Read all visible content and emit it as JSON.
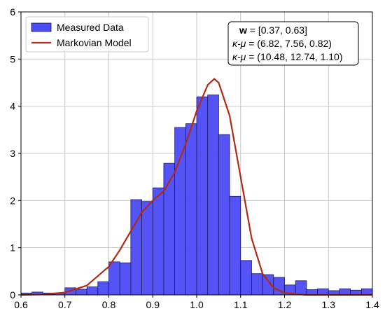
{
  "chart_data": {
    "type": "histogram",
    "bins": [
      0.6,
      0.625,
      0.65,
      0.675,
      0.7,
      0.725,
      0.75,
      0.775,
      0.8,
      0.825,
      0.85,
      0.875,
      0.9,
      0.925,
      0.95,
      0.975,
      1.0,
      1.025,
      1.05,
      1.075,
      1.1,
      1.125,
      1.15,
      1.175,
      1.2,
      1.225,
      1.25,
      1.275,
      1.3,
      1.325,
      1.35,
      1.375,
      1.4
    ],
    "series": [
      {
        "name": "Measured Data",
        "color": "#4b4bf5",
        "edgecolor": "#1a1a5e",
        "values": [
          0.04,
          0.06,
          0.04,
          0.04,
          0.15,
          0.12,
          0.17,
          0.28,
          0.7,
          0.68,
          2.02,
          1.98,
          2.27,
          2.79,
          3.55,
          3.63,
          4.2,
          4.24,
          3.4,
          2.09,
          0.73,
          0.45,
          0.43,
          0.37,
          0.21,
          0.3,
          0.11,
          0.13,
          0.09,
          0.13,
          0.1,
          0.13
        ]
      },
      {
        "name": "Markovian Model",
        "color": "#b22a14",
        "type": "line",
        "x": [
          0.6,
          0.65,
          0.7,
          0.75,
          0.8,
          0.825,
          0.85,
          0.875,
          0.9,
          0.925,
          0.95,
          0.975,
          1.0,
          1.025,
          1.04,
          1.05,
          1.075,
          1.1,
          1.125,
          1.15,
          1.175,
          1.2,
          1.25,
          1.4
        ],
        "values": [
          0,
          0.01,
          0.05,
          0.2,
          0.6,
          0.95,
          1.35,
          1.75,
          2.0,
          2.2,
          2.6,
          3.2,
          3.9,
          4.45,
          4.58,
          4.5,
          3.8,
          2.5,
          1.2,
          0.45,
          0.15,
          0.04,
          0,
          0
        ]
      }
    ],
    "annotation": [
      [
        "w",
        " = [0.37, 0.63]"
      ],
      [
        "κ-μ",
        " = (6.82, 7.56, 0.82)"
      ],
      [
        "κ-μ",
        " = (10.48, 12.74, 1.10)"
      ]
    ],
    "xlim": [
      0.6,
      1.4
    ],
    "xticks": [
      0.6,
      0.7,
      0.8,
      0.9,
      {
        "value": 1,
        "label": "1.0"
      },
      1.1,
      1.2,
      1.3,
      1.4
    ],
    "ylim": [
      0,
      6
    ],
    "yticks": [
      0,
      1,
      2,
      3,
      4,
      5,
      6
    ],
    "grid": true,
    "legend": "upper left"
  }
}
